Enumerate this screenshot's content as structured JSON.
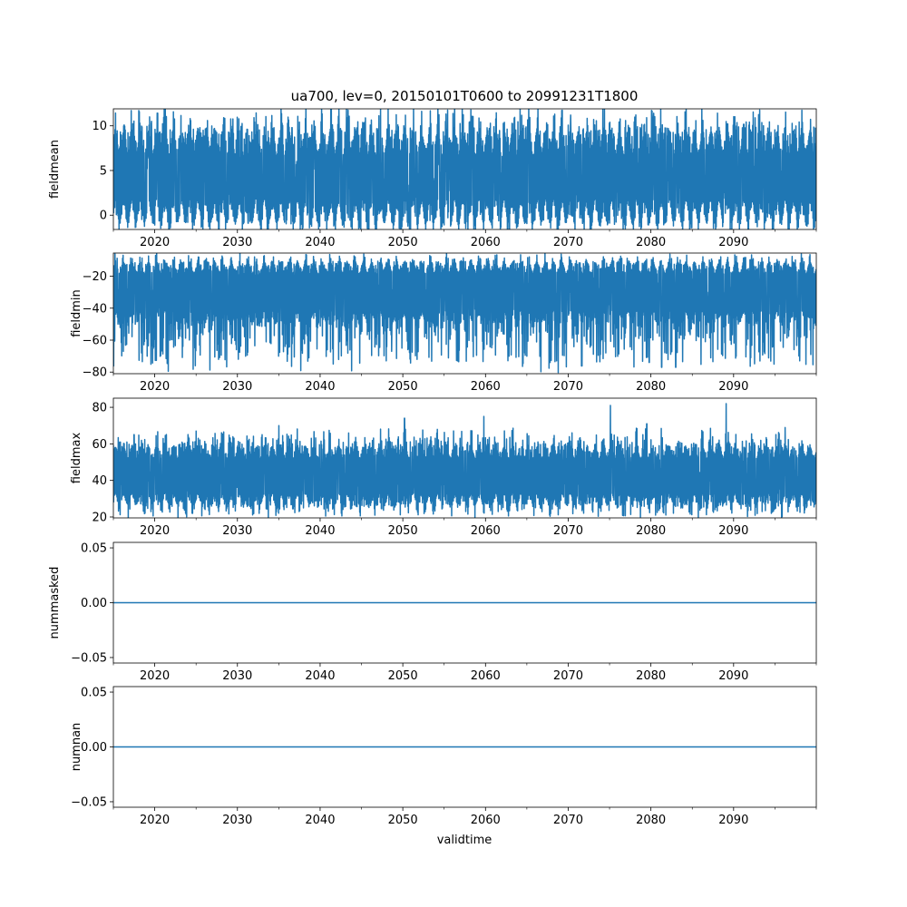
{
  "title": "ua700, lev=0, 20150101T0600 to 20991231T1800",
  "xlabel": "validtime",
  "line_color": "#1f77b4",
  "chart_data": [
    {
      "type": "line",
      "name": "fieldmean",
      "ylabel": "fieldmean",
      "xlim": [
        2015.0,
        2100.0
      ],
      "ylim": [
        -1.6,
        11.9
      ],
      "yticks": [
        0,
        5,
        10
      ],
      "xticks": [
        2020,
        2030,
        2040,
        2050,
        2060,
        2070,
        2080,
        2090
      ],
      "x_range": [
        2015.0,
        2099.99
      ],
      "mean": 4.5,
      "low_envelope": [
        0.5,
        -1.1
      ],
      "high_envelope": [
        8.0,
        11.2
      ],
      "seasonal_amplitude": 2.2,
      "spikes": [
        {
          "x": 2017.1,
          "y": 9.3
        },
        {
          "x": 2019.6,
          "y": 10.5
        },
        {
          "x": 2020.0,
          "y": -1.1
        },
        {
          "x": 2031.3,
          "y": -0.9
        },
        {
          "x": 2036.6,
          "y": 9.8
        },
        {
          "x": 2053.3,
          "y": -0.6
        },
        {
          "x": 2061.0,
          "y": 9.9
        },
        {
          "x": 2070.3,
          "y": 11.2
        },
        {
          "x": 2080.3,
          "y": 10.9
        },
        {
          "x": 2092.6,
          "y": 10.9
        }
      ]
    },
    {
      "type": "line",
      "name": "fieldmin",
      "ylabel": "fieldmin",
      "xlim": [
        2015.0,
        2100.0
      ],
      "ylim": [
        -81.0,
        -5.5
      ],
      "yticks": [
        -80,
        -60,
        -40,
        -20
      ],
      "xticks": [
        2020,
        2030,
        2040,
        2050,
        2060,
        2070,
        2080,
        2090
      ],
      "x_range": [
        2015.0,
        2099.99
      ],
      "mean": -30,
      "low_envelope": [
        -45,
        -77
      ],
      "high_envelope": [
        -15,
        -9
      ],
      "seasonal_amplitude": 6,
      "spikes": [
        {
          "x": 2016.2,
          "y": -67
        },
        {
          "x": 2018.4,
          "y": -68
        },
        {
          "x": 2030.1,
          "y": -72
        },
        {
          "x": 2048.0,
          "y": -73
        },
        {
          "x": 2067.8,
          "y": -74
        },
        {
          "x": 2079.8,
          "y": -74
        },
        {
          "x": 2081.3,
          "y": -77
        },
        {
          "x": 2083.0,
          "y": -77
        },
        {
          "x": 2098.0,
          "y": -73
        }
      ]
    },
    {
      "type": "line",
      "name": "fieldmax",
      "ylabel": "fieldmax",
      "xlim": [
        2015.0,
        2100.0
      ],
      "ylim": [
        19.5,
        85.0
      ],
      "yticks": [
        20,
        40,
        60,
        80
      ],
      "xticks": [
        2020,
        2030,
        2040,
        2050,
        2060,
        2070,
        2080,
        2090
      ],
      "x_range": [
        2015.0,
        2099.99
      ],
      "mean": 42,
      "low_envelope": [
        30,
        22
      ],
      "high_envelope": [
        55,
        66
      ],
      "seasonal_amplitude": 5,
      "spikes": [
        {
          "x": 2017.5,
          "y": 65
        },
        {
          "x": 2025.0,
          "y": 67
        },
        {
          "x": 2035.0,
          "y": 70
        },
        {
          "x": 2050.2,
          "y": 74
        },
        {
          "x": 2059.8,
          "y": 75
        },
        {
          "x": 2075.1,
          "y": 81
        },
        {
          "x": 2079.5,
          "y": 71
        },
        {
          "x": 2089.1,
          "y": 82
        }
      ]
    },
    {
      "type": "line",
      "name": "nummasked",
      "ylabel": "nummasked",
      "xlim": [
        2015.0,
        2100.0
      ],
      "ylim": [
        -0.055,
        0.055
      ],
      "yticks": [
        -0.05,
        0.0,
        0.05
      ],
      "ytick_labels": [
        "−0.05",
        "0.00",
        "0.05"
      ],
      "xticks": [
        2020,
        2030,
        2040,
        2050,
        2060,
        2070,
        2080,
        2090
      ],
      "x": [
        2015.0,
        2099.99
      ],
      "y": [
        0.0,
        0.0
      ]
    },
    {
      "type": "line",
      "name": "numnan",
      "ylabel": "numnan",
      "xlim": [
        2015.0,
        2100.0
      ],
      "ylim": [
        -0.055,
        0.055
      ],
      "yticks": [
        -0.05,
        0.0,
        0.05
      ],
      "ytick_labels": [
        "−0.05",
        "0.00",
        "0.05"
      ],
      "xticks": [
        2020,
        2030,
        2040,
        2050,
        2060,
        2070,
        2080,
        2090
      ],
      "x": [
        2015.0,
        2099.99
      ],
      "y": [
        0.0,
        0.0
      ]
    }
  ]
}
